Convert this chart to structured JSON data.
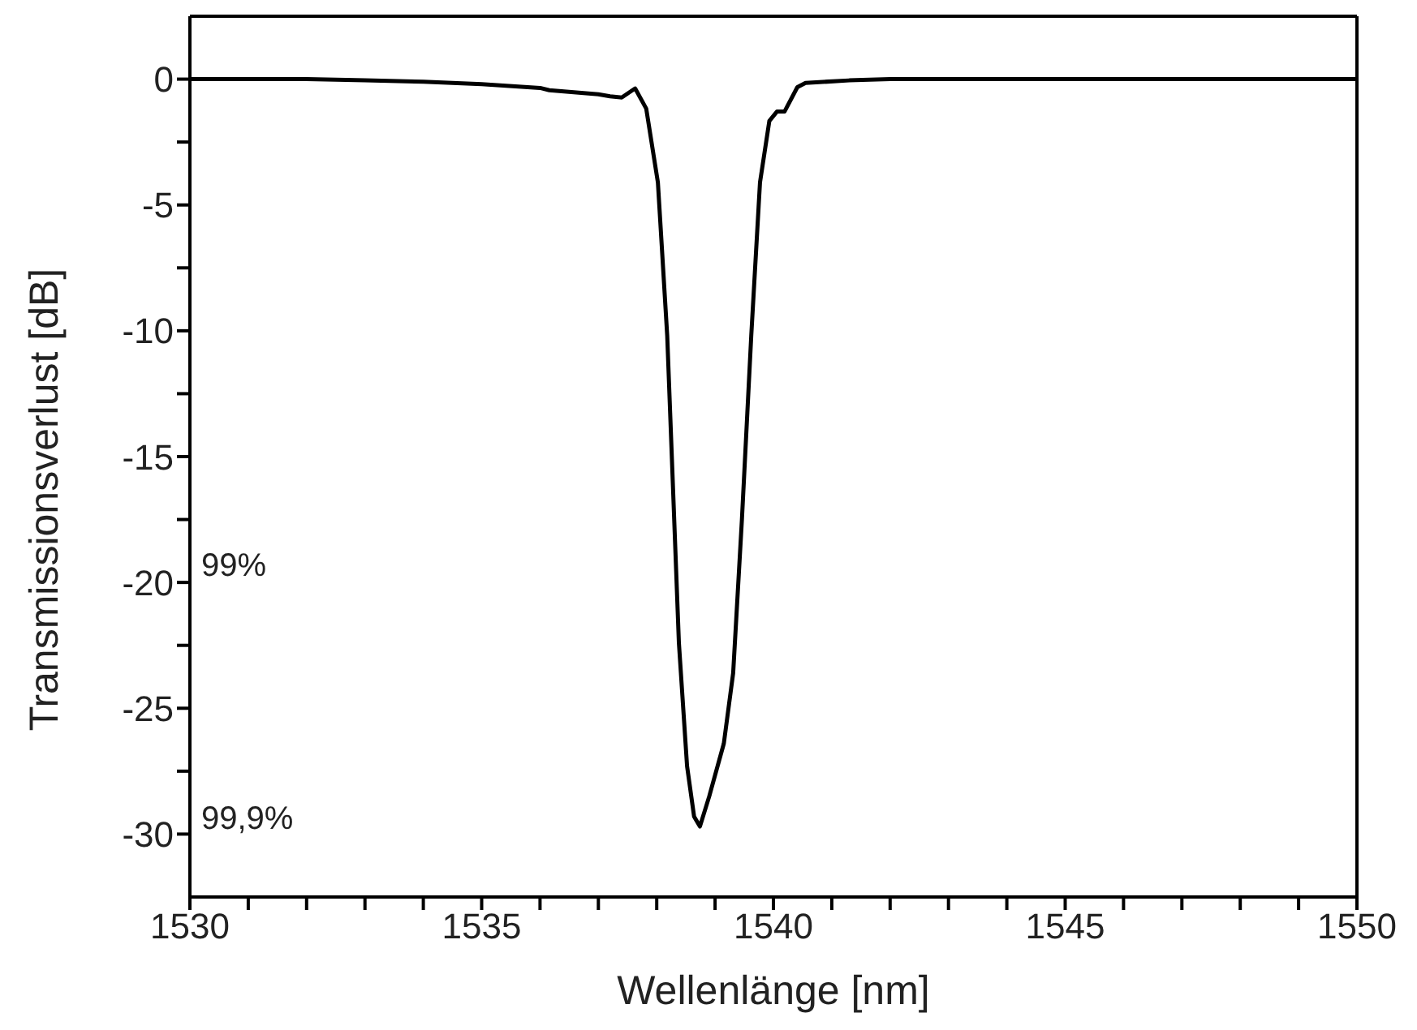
{
  "chart_data": {
    "type": "line",
    "xlabel": "Wellenlänge [nm]",
    "ylabel": "Transmissionsverlust [dB]",
    "x": [
      1530,
      1531,
      1532,
      1533,
      1534,
      1535,
      1536,
      1536.16,
      1537,
      1537.2,
      1537.4,
      1537.63,
      1537.82,
      1538.02,
      1538.18,
      1538.28,
      1538.38,
      1538.52,
      1538.64,
      1538.74,
      1538.9,
      1539.15,
      1539.31,
      1539.46,
      1539.62,
      1539.77,
      1539.93,
      1540.06,
      1540.19,
      1540.41,
      1540.55,
      1541.3,
      1542,
      1544,
      1546,
      1548,
      1550
    ],
    "series": [
      {
        "color": "#000000",
        "values": [
          0,
          0,
          0,
          -0.05,
          -0.1,
          -0.2,
          -0.35,
          -0.44,
          -0.6,
          -0.68,
          -0.73,
          -0.37,
          -1.17,
          -4.1,
          -10.2,
          -16.3,
          -22.4,
          -27.3,
          -29.3,
          -29.7,
          -28.5,
          -26.4,
          -23.6,
          -17.5,
          -10.2,
          -4.1,
          -1.66,
          -1.29,
          -1.29,
          -0.32,
          -0.15,
          -0.05,
          0,
          0,
          0,
          0,
          0
        ]
      }
    ],
    "xlim": [
      1530,
      1550
    ],
    "xticks": [
      1530,
      {
        "value": 1531,
        "label": null
      },
      {
        "value": 1532,
        "label": null
      },
      {
        "value": 1533,
        "label": null
      },
      {
        "value": 1534,
        "label": null
      },
      1535,
      {
        "value": 1536,
        "label": null
      },
      {
        "value": 1537,
        "label": null
      },
      {
        "value": 1538,
        "label": null
      },
      {
        "value": 1539,
        "label": null
      },
      1540,
      {
        "value": 1541,
        "label": null
      },
      {
        "value": 1542,
        "label": null
      },
      {
        "value": 1543,
        "label": null
      },
      {
        "value": 1544,
        "label": null
      },
      1545,
      {
        "value": 1546,
        "label": null
      },
      {
        "value": 1547,
        "label": null
      },
      {
        "value": 1548,
        "label": null
      },
      {
        "value": 1549,
        "label": null
      },
      1550
    ],
    "ylim": [
      -32.5,
      2.5
    ],
    "yticks": [
      -30,
      {
        "value": -27.5,
        "label": null
      },
      -25,
      {
        "value": -22.5,
        "label": null
      },
      -20,
      {
        "value": -17.5,
        "label": null
      },
      -15,
      {
        "value": -12.5,
        "label": null
      },
      -10,
      {
        "value": -7.5,
        "label": null
      },
      -5,
      {
        "value": -2.5,
        "label": null
      },
      0
    ],
    "annotations": [
      "99%",
      "99,9%"
    ],
    "grid": false,
    "legend": false,
    "marker": "none",
    "line_style": "solid"
  }
}
